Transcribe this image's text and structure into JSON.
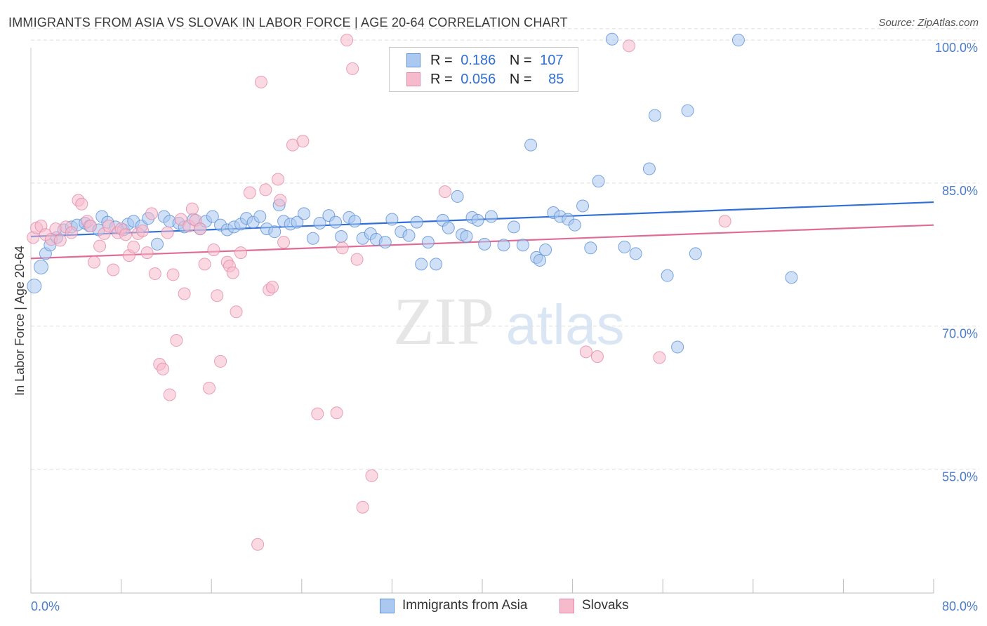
{
  "header": {
    "title": "IMMIGRANTS FROM ASIA VS SLOVAK IN LABOR FORCE | AGE 20-64 CORRELATION CHART",
    "source": "Source: ZipAtlas.com"
  },
  "legend": {
    "rows": [
      {
        "r_label": "R =",
        "r_value": "0.186",
        "n_label": "N =",
        "n_value": "107"
      },
      {
        "r_label": "R =",
        "r_value": "0.056",
        "n_label": "N =",
        "n_value": "85"
      }
    ]
  },
  "bottom_legend": {
    "series1": "Immigrants from Asia",
    "series2": "Slovaks"
  },
  "watermark": {
    "zip": "ZIP",
    "atlas": "atlas"
  },
  "colors": {
    "series1_fill": "#aac8f0",
    "series1_stroke": "#5b8fd6",
    "series1_line": "#2f6fd6",
    "series2_fill": "#f7b9cc",
    "series2_stroke": "#e48aa8",
    "series2_line": "#e06b97",
    "grid": "#dddddd",
    "tick_text": "#4a7cc9"
  },
  "chart_data": {
    "type": "scatter",
    "title": "IMMIGRANTS FROM ASIA VS SLOVAK IN LABOR FORCE | AGE 20-64 CORRELATION CHART",
    "xlabel": "",
    "ylabel": "In Labor Force | Age 20-64",
    "xlim": [
      0,
      80
    ],
    "ylim": [
      42,
      102
    ],
    "x_tick_labels": [
      "0.0%",
      "80.0%"
    ],
    "y_ticks": [
      55,
      70,
      85,
      100
    ],
    "y_tick_labels": [
      "55.0%",
      "70.0%",
      "85.0%",
      "100.0%"
    ],
    "grid": true,
    "series": [
      {
        "name": "Immigrants from Asia",
        "trend": {
          "x": [
            0,
            80
          ],
          "y": [
            79.4,
            83.0
          ]
        },
        "points": [
          [
            0.3,
            74.2
          ],
          [
            0.9,
            76.2
          ],
          [
            1.3,
            77.6
          ],
          [
            1.7,
            78.5
          ],
          [
            2.3,
            79.3
          ],
          [
            2.9,
            80.1
          ],
          [
            3.6,
            80.4
          ],
          [
            4.1,
            80.6
          ],
          [
            4.8,
            80.8
          ],
          [
            5.2,
            80.5
          ],
          [
            6.0,
            80.1
          ],
          [
            6.3,
            81.5
          ],
          [
            6.8,
            80.9
          ],
          [
            7.5,
            80.4
          ],
          [
            8.2,
            80.1
          ],
          [
            8.6,
            80.7
          ],
          [
            9.1,
            81.0
          ],
          [
            9.8,
            80.5
          ],
          [
            10.4,
            81.3
          ],
          [
            11.2,
            78.6
          ],
          [
            11.8,
            81.5
          ],
          [
            12.3,
            81.0
          ],
          [
            13.1,
            80.8
          ],
          [
            13.6,
            80.4
          ],
          [
            14.4,
            81.2
          ],
          [
            15.0,
            80.2
          ],
          [
            15.5,
            81.0
          ],
          [
            16.1,
            81.5
          ],
          [
            16.8,
            80.6
          ],
          [
            17.4,
            80.1
          ],
          [
            18.0,
            80.4
          ],
          [
            18.6,
            80.7
          ],
          [
            19.1,
            81.3
          ],
          [
            19.7,
            80.9
          ],
          [
            20.3,
            81.5
          ],
          [
            20.9,
            80.2
          ],
          [
            21.6,
            79.9
          ],
          [
            22.0,
            82.7
          ],
          [
            22.4,
            81.0
          ],
          [
            23.0,
            80.7
          ],
          [
            23.6,
            80.9
          ],
          [
            24.2,
            81.8
          ],
          [
            25.0,
            79.2
          ],
          [
            25.6,
            80.8
          ],
          [
            26.4,
            81.6
          ],
          [
            27.0,
            80.9
          ],
          [
            27.5,
            79.4
          ],
          [
            28.2,
            81.4
          ],
          [
            28.7,
            81.0
          ],
          [
            29.4,
            79.2
          ],
          [
            30.1,
            79.7
          ],
          [
            30.6,
            79.1
          ],
          [
            31.4,
            78.8
          ],
          [
            32.0,
            81.2
          ],
          [
            32.8,
            79.9
          ],
          [
            33.5,
            79.5
          ],
          [
            34.2,
            80.9
          ],
          [
            34.6,
            76.5
          ],
          [
            35.2,
            78.8
          ],
          [
            35.9,
            76.5
          ],
          [
            36.5,
            81.1
          ],
          [
            37.0,
            80.3
          ],
          [
            37.8,
            83.6
          ],
          [
            38.2,
            79.6
          ],
          [
            38.6,
            79.4
          ],
          [
            39.1,
            81.4
          ],
          [
            39.6,
            81.1
          ],
          [
            40.2,
            78.6
          ],
          [
            40.8,
            81.5
          ],
          [
            41.9,
            78.5
          ],
          [
            42.8,
            80.4
          ],
          [
            43.6,
            78.5
          ],
          [
            44.3,
            89.0
          ],
          [
            44.8,
            77.2
          ],
          [
            45.1,
            76.9
          ],
          [
            45.6,
            78.0
          ],
          [
            46.3,
            81.9
          ],
          [
            46.9,
            81.5
          ],
          [
            47.6,
            81.2
          ],
          [
            48.2,
            80.6
          ],
          [
            48.9,
            82.6
          ],
          [
            49.6,
            78.2
          ],
          [
            50.3,
            85.2
          ],
          [
            51.5,
            100.1
          ],
          [
            52.6,
            78.3
          ],
          [
            53.6,
            77.6
          ],
          [
            54.8,
            86.5
          ],
          [
            55.3,
            92.1
          ],
          [
            56.4,
            75.3
          ],
          [
            57.3,
            67.8
          ],
          [
            58.2,
            92.6
          ],
          [
            58.9,
            77.6
          ],
          [
            62.7,
            100.0
          ],
          [
            67.4,
            75.1
          ]
        ]
      },
      {
        "name": "Slovaks",
        "trend": {
          "x": [
            0,
            80
          ],
          "y": [
            77.1,
            80.6
          ]
        },
        "points": [
          [
            0.2,
            79.3
          ],
          [
            0.5,
            80.3
          ],
          [
            0.9,
            80.5
          ],
          [
            1.3,
            79.6
          ],
          [
            1.8,
            79.1
          ],
          [
            2.2,
            80.2
          ],
          [
            2.6,
            79.0
          ],
          [
            3.1,
            80.4
          ],
          [
            3.6,
            79.8
          ],
          [
            4.2,
            83.2
          ],
          [
            4.5,
            82.8
          ],
          [
            5.0,
            81.0
          ],
          [
            5.3,
            80.5
          ],
          [
            5.6,
            76.7
          ],
          [
            6.1,
            78.4
          ],
          [
            6.5,
            79.7
          ],
          [
            6.9,
            80.5
          ],
          [
            7.3,
            75.9
          ],
          [
            7.7,
            79.8
          ],
          [
            8.0,
            80.2
          ],
          [
            8.4,
            79.6
          ],
          [
            8.7,
            77.4
          ],
          [
            9.1,
            78.3
          ],
          [
            9.5,
            79.7
          ],
          [
            9.9,
            80.0
          ],
          [
            10.3,
            77.7
          ],
          [
            10.7,
            81.8
          ],
          [
            11.0,
            75.5
          ],
          [
            11.4,
            66.0
          ],
          [
            11.7,
            65.5
          ],
          [
            12.1,
            79.8
          ],
          [
            12.3,
            62.8
          ],
          [
            12.6,
            75.4
          ],
          [
            12.9,
            68.5
          ],
          [
            13.3,
            81.2
          ],
          [
            13.6,
            73.4
          ],
          [
            14.0,
            80.5
          ],
          [
            14.3,
            82.3
          ],
          [
            14.6,
            81.1
          ],
          [
            15.0,
            80.2
          ],
          [
            15.4,
            76.5
          ],
          [
            15.8,
            63.5
          ],
          [
            16.2,
            78.0
          ],
          [
            16.5,
            73.2
          ],
          [
            16.8,
            66.3
          ],
          [
            17.4,
            76.7
          ],
          [
            17.6,
            76.3
          ],
          [
            17.9,
            75.6
          ],
          [
            18.2,
            71.5
          ],
          [
            18.6,
            77.7
          ],
          [
            19.4,
            84.0
          ],
          [
            20.1,
            47.1
          ],
          [
            20.4,
            95.6
          ],
          [
            20.8,
            84.3
          ],
          [
            21.1,
            73.8
          ],
          [
            21.4,
            74.1
          ],
          [
            21.9,
            85.4
          ],
          [
            22.1,
            83.2
          ],
          [
            22.4,
            78.8
          ],
          [
            23.2,
            89.0
          ],
          [
            24.1,
            89.4
          ],
          [
            25.4,
            60.8
          ],
          [
            27.1,
            60.9
          ],
          [
            27.6,
            78.2
          ],
          [
            28.0,
            100.0
          ],
          [
            28.5,
            97.0
          ],
          [
            28.9,
            77.0
          ],
          [
            29.4,
            51.0
          ],
          [
            30.2,
            54.3
          ],
          [
            36.7,
            84.1
          ],
          [
            49.2,
            67.3
          ],
          [
            50.2,
            66.8
          ],
          [
            53.0,
            99.4
          ],
          [
            55.7,
            66.7
          ],
          [
            61.5,
            81.0
          ]
        ]
      }
    ]
  }
}
